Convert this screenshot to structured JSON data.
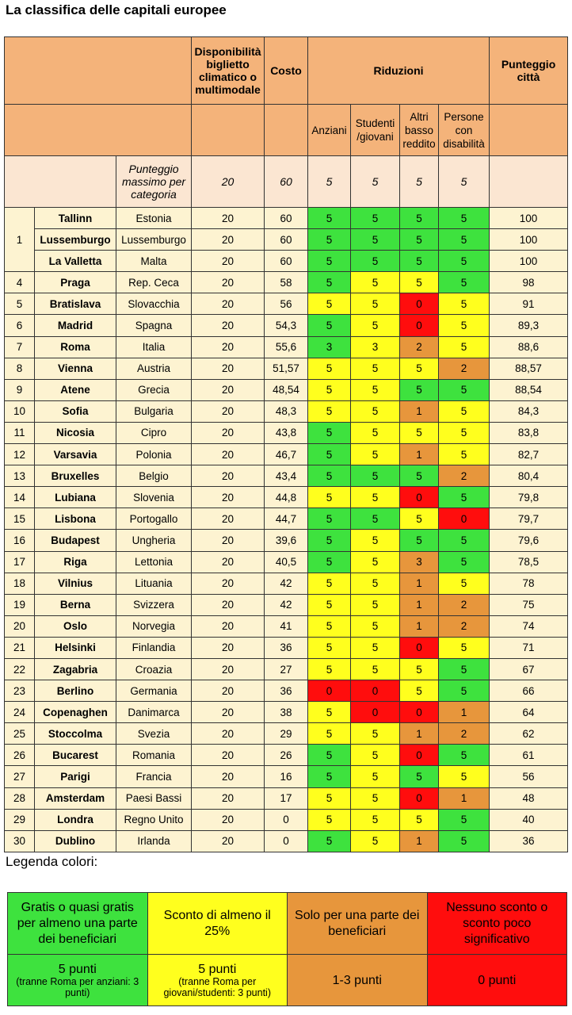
{
  "title": "La classifica delle capitali europee",
  "header": {
    "disponibilita": "Disponibilità biglietto climatico o multimodale",
    "costo": "Costo",
    "riduzioni": "Riduzioni",
    "punteggio": "Punteggio città",
    "anziani": "Anziani",
    "studenti": "Studenti /giovani",
    "altri": "Altri basso reddito",
    "persone": "Persone con disabilità"
  },
  "max_row": {
    "label": "Punteggio massimo per categoria",
    "disponibilita": "20",
    "costo": "60",
    "anziani": "5",
    "studenti": "5",
    "altri": "5",
    "persone": "5"
  },
  "colors": {
    "green": "#3ee23e",
    "yellow": "#ffff1e",
    "orange": "#e7963c",
    "red": "#ff0d0d",
    "header": "#f4b37a",
    "row": "#fdf3d1"
  },
  "rows": [
    {
      "rank": "1",
      "city": "Tallinn",
      "country": "Estonia",
      "disp": "20",
      "cost": "60",
      "anz": "5",
      "anz_c": "green",
      "stu": "5",
      "stu_c": "green",
      "alt": "5",
      "alt_c": "green",
      "dis": "5",
      "dis_c": "green",
      "total": "100"
    },
    {
      "rank": "",
      "city": "Lussemburgo",
      "country": "Lussemburgo",
      "disp": "20",
      "cost": "60",
      "anz": "5",
      "anz_c": "green",
      "stu": "5",
      "stu_c": "green",
      "alt": "5",
      "alt_c": "green",
      "dis": "5",
      "dis_c": "green",
      "total": "100"
    },
    {
      "rank": "",
      "city": "La Valletta",
      "country": "Malta",
      "disp": "20",
      "cost": "60",
      "anz": "5",
      "anz_c": "green",
      "stu": "5",
      "stu_c": "green",
      "alt": "5",
      "alt_c": "green",
      "dis": "5",
      "dis_c": "green",
      "total": "100"
    },
    {
      "rank": "4",
      "city": "Praga",
      "country": "Rep. Ceca",
      "disp": "20",
      "cost": "58",
      "anz": "5",
      "anz_c": "green",
      "stu": "5",
      "stu_c": "yellow",
      "alt": "5",
      "alt_c": "yellow",
      "dis": "5",
      "dis_c": "green",
      "total": "98"
    },
    {
      "rank": "5",
      "city": "Bratislava",
      "country": "Slovacchia",
      "disp": "20",
      "cost": "56",
      "anz": "5",
      "anz_c": "yellow",
      "stu": "5",
      "stu_c": "yellow",
      "alt": "0",
      "alt_c": "red",
      "dis": "5",
      "dis_c": "yellow",
      "total": "91"
    },
    {
      "rank": "6",
      "city": "Madrid",
      "country": "Spagna",
      "disp": "20",
      "cost": "54,3",
      "anz": "5",
      "anz_c": "green",
      "stu": "5",
      "stu_c": "yellow",
      "alt": "0",
      "alt_c": "red",
      "dis": "5",
      "dis_c": "yellow",
      "total": "89,3"
    },
    {
      "rank": "7",
      "city": "Roma",
      "country": "Italia",
      "disp": "20",
      "cost": "55,6",
      "anz": "3",
      "anz_c": "green",
      "stu": "3",
      "stu_c": "yellow",
      "alt": "2",
      "alt_c": "orange",
      "dis": "5",
      "dis_c": "yellow",
      "total": "88,6"
    },
    {
      "rank": "8",
      "city": "Vienna",
      "country": "Austria",
      "disp": "20",
      "cost": "51,57",
      "anz": "5",
      "anz_c": "yellow",
      "stu": "5",
      "stu_c": "yellow",
      "alt": "5",
      "alt_c": "yellow",
      "dis": "2",
      "dis_c": "orange",
      "total": "88,57"
    },
    {
      "rank": "9",
      "city": "Atene",
      "country": "Grecia",
      "disp": "20",
      "cost": "48,54",
      "anz": "5",
      "anz_c": "yellow",
      "stu": "5",
      "stu_c": "yellow",
      "alt": "5",
      "alt_c": "green",
      "dis": "5",
      "dis_c": "green",
      "total": "88,54"
    },
    {
      "rank": "10",
      "city": "Sofia",
      "country": "Bulgaria",
      "disp": "20",
      "cost": "48,3",
      "anz": "5",
      "anz_c": "yellow",
      "stu": "5",
      "stu_c": "yellow",
      "alt": "1",
      "alt_c": "orange",
      "dis": "5",
      "dis_c": "yellow",
      "total": "84,3"
    },
    {
      "rank": "11",
      "city": "Nicosia",
      "country": "Cipro",
      "disp": "20",
      "cost": "43,8",
      "anz": "5",
      "anz_c": "green",
      "stu": "5",
      "stu_c": "yellow",
      "alt": "5",
      "alt_c": "yellow",
      "dis": "5",
      "dis_c": "yellow",
      "total": "83,8"
    },
    {
      "rank": "12",
      "city": "Varsavia",
      "country": "Polonia",
      "disp": "20",
      "cost": "46,7",
      "anz": "5",
      "anz_c": "green",
      "stu": "5",
      "stu_c": "yellow",
      "alt": "1",
      "alt_c": "orange",
      "dis": "5",
      "dis_c": "yellow",
      "total": "82,7"
    },
    {
      "rank": "13",
      "city": "Bruxelles",
      "country": "Belgio",
      "disp": "20",
      "cost": "43,4",
      "anz": "5",
      "anz_c": "green",
      "stu": "5",
      "stu_c": "green",
      "alt": "5",
      "alt_c": "green",
      "dis": "2",
      "dis_c": "orange",
      "total": "80,4"
    },
    {
      "rank": "14",
      "city": "Lubiana",
      "country": "Slovenia",
      "disp": "20",
      "cost": "44,8",
      "anz": "5",
      "anz_c": "yellow",
      "stu": "5",
      "stu_c": "yellow",
      "alt": "0",
      "alt_c": "red",
      "dis": "5",
      "dis_c": "green",
      "total": "79,8"
    },
    {
      "rank": "15",
      "city": "Lisbona",
      "country": "Portogallo",
      "disp": "20",
      "cost": "44,7",
      "anz": "5",
      "anz_c": "green",
      "stu": "5",
      "stu_c": "green",
      "alt": "5",
      "alt_c": "yellow",
      "dis": "0",
      "dis_c": "red",
      "total": "79,7"
    },
    {
      "rank": "16",
      "city": "Budapest",
      "country": "Ungheria",
      "disp": "20",
      "cost": "39,6",
      "anz": "5",
      "anz_c": "green",
      "stu": "5",
      "stu_c": "yellow",
      "alt": "5",
      "alt_c": "green",
      "dis": "5",
      "dis_c": "green",
      "total": "79,6"
    },
    {
      "rank": "17",
      "city": "Riga",
      "country": "Lettonia",
      "disp": "20",
      "cost": "40,5",
      "anz": "5",
      "anz_c": "green",
      "stu": "5",
      "stu_c": "yellow",
      "alt": "3",
      "alt_c": "orange",
      "dis": "5",
      "dis_c": "green",
      "total": "78,5"
    },
    {
      "rank": "18",
      "city": "Vilnius",
      "country": "Lituania",
      "disp": "20",
      "cost": "42",
      "anz": "5",
      "anz_c": "yellow",
      "stu": "5",
      "stu_c": "yellow",
      "alt": "1",
      "alt_c": "orange",
      "dis": "5",
      "dis_c": "yellow",
      "total": "78"
    },
    {
      "rank": "19",
      "city": "Berna",
      "country": "Svizzera",
      "disp": "20",
      "cost": "42",
      "anz": "5",
      "anz_c": "yellow",
      "stu": "5",
      "stu_c": "yellow",
      "alt": "1",
      "alt_c": "orange",
      "dis": "2",
      "dis_c": "orange",
      "total": "75"
    },
    {
      "rank": "20",
      "city": "Oslo",
      "country": "Norvegia",
      "disp": "20",
      "cost": "41",
      "anz": "5",
      "anz_c": "yellow",
      "stu": "5",
      "stu_c": "yellow",
      "alt": "1",
      "alt_c": "orange",
      "dis": "2",
      "dis_c": "orange",
      "total": "74"
    },
    {
      "rank": "21",
      "city": "Helsinki",
      "country": "Finlandia",
      "disp": "20",
      "cost": "36",
      "anz": "5",
      "anz_c": "yellow",
      "stu": "5",
      "stu_c": "yellow",
      "alt": "0",
      "alt_c": "red",
      "dis": "5",
      "dis_c": "yellow",
      "total": "71"
    },
    {
      "rank": "22",
      "city": "Zagabria",
      "country": "Croazia",
      "disp": "20",
      "cost": "27",
      "anz": "5",
      "anz_c": "yellow",
      "stu": "5",
      "stu_c": "yellow",
      "alt": "5",
      "alt_c": "yellow",
      "dis": "5",
      "dis_c": "green",
      "total": "67"
    },
    {
      "rank": "23",
      "city": "Berlino",
      "country": "Germania",
      "disp": "20",
      "cost": "36",
      "anz": "0",
      "anz_c": "red",
      "stu": "0",
      "stu_c": "red",
      "alt": "5",
      "alt_c": "yellow",
      "dis": "5",
      "dis_c": "green",
      "total": "66"
    },
    {
      "rank": "24",
      "city": "Copenaghen",
      "country": "Danimarca",
      "disp": "20",
      "cost": "38",
      "anz": "5",
      "anz_c": "yellow",
      "stu": "0",
      "stu_c": "red",
      "alt": "0",
      "alt_c": "red",
      "dis": "1",
      "dis_c": "orange",
      "total": "64"
    },
    {
      "rank": "25",
      "city": "Stoccolma",
      "country": "Svezia",
      "disp": "20",
      "cost": "29",
      "anz": "5",
      "anz_c": "yellow",
      "stu": "5",
      "stu_c": "yellow",
      "alt": "1",
      "alt_c": "orange",
      "dis": "2",
      "dis_c": "orange",
      "total": "62"
    },
    {
      "rank": "26",
      "city": "Bucarest",
      "country": "Romania",
      "disp": "20",
      "cost": "26",
      "anz": "5",
      "anz_c": "green",
      "stu": "5",
      "stu_c": "yellow",
      "alt": "0",
      "alt_c": "red",
      "dis": "5",
      "dis_c": "green",
      "total": "61"
    },
    {
      "rank": "27",
      "city": "Parigi",
      "country": "Francia",
      "disp": "20",
      "cost": "16",
      "anz": "5",
      "anz_c": "green",
      "stu": "5",
      "stu_c": "yellow",
      "alt": "5",
      "alt_c": "green",
      "dis": "5",
      "dis_c": "yellow",
      "total": "56"
    },
    {
      "rank": "28",
      "city": "Amsterdam",
      "country": "Paesi Bassi",
      "disp": "20",
      "cost": "17",
      "anz": "5",
      "anz_c": "yellow",
      "stu": "5",
      "stu_c": "yellow",
      "alt": "0",
      "alt_c": "red",
      "dis": "1",
      "dis_c": "orange",
      "total": "48"
    },
    {
      "rank": "29",
      "city": "Londra",
      "country": "Regno Unito",
      "disp": "20",
      "cost": "0",
      "anz": "5",
      "anz_c": "yellow",
      "stu": "5",
      "stu_c": "yellow",
      "alt": "5",
      "alt_c": "yellow",
      "dis": "5",
      "dis_c": "green",
      "total": "40"
    },
    {
      "rank": "30",
      "city": "Dublino",
      "country": "Irlanda",
      "disp": "20",
      "cost": "0",
      "anz": "5",
      "anz_c": "green",
      "stu": "5",
      "stu_c": "yellow",
      "alt": "1",
      "alt_c": "orange",
      "dis": "5",
      "dis_c": "green",
      "total": "36"
    }
  ],
  "legend": {
    "title": "Legenda colori:",
    "items": [
      {
        "color": "green",
        "desc": "Gratis o quasi gratis per almeno una parte dei beneficiari",
        "points": "5 punti",
        "note": "(tranne Roma per anziani: 3 punti)"
      },
      {
        "color": "yellow",
        "desc": "Sconto di almeno il 25%",
        "points": "5 punti",
        "note": "(tranne Roma per giovani/studenti: 3 punti)"
      },
      {
        "color": "orange",
        "desc": "Solo per una parte dei beneficiari",
        "points": "1-3 punti",
        "note": ""
      },
      {
        "color": "red",
        "desc": "Nessuno sconto o sconto poco significativo",
        "points": "0 punti",
        "note": ""
      }
    ]
  }
}
